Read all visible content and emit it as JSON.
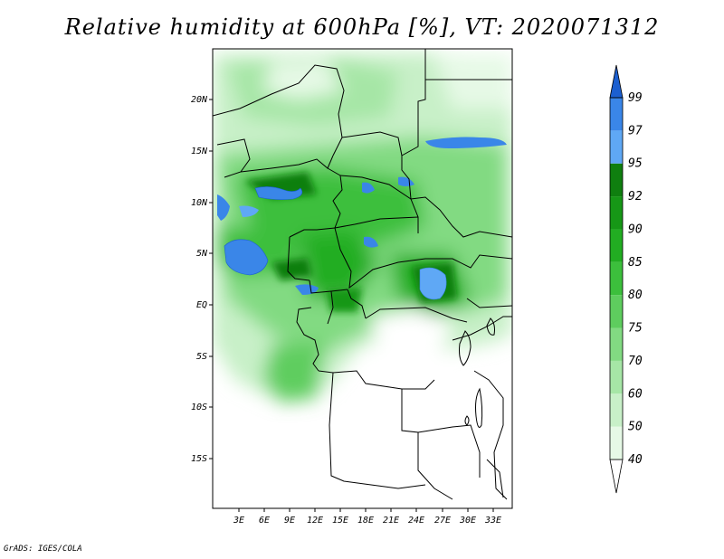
{
  "title": "Relative humidity at 600hPa [%], VT: 2020071312",
  "footer": "GrADS: IGES/COLA",
  "map": {
    "lat_ticks": [
      "20N",
      "15N",
      "10N",
      "5N",
      "EQ",
      "5S",
      "10S",
      "15S"
    ],
    "lon_ticks": [
      "3E",
      "6E",
      "9E",
      "12E",
      "15E",
      "18E",
      "21E",
      "24E",
      "27E",
      "30E",
      "33E"
    ]
  },
  "colorbar": {
    "levels": [
      "40",
      "50",
      "60",
      "70",
      "75",
      "80",
      "85",
      "90",
      "92",
      "95",
      "97",
      "99"
    ],
    "colors": [
      "#ffffff",
      "#e6f9e6",
      "#c8f0c8",
      "#a6e6a6",
      "#82da82",
      "#5ecd5e",
      "#3cbf3c",
      "#22ad22",
      "#169716",
      "#0f7f0f",
      "#5fa8f5",
      "#3a86e8",
      "#1c5fd0"
    ]
  }
}
